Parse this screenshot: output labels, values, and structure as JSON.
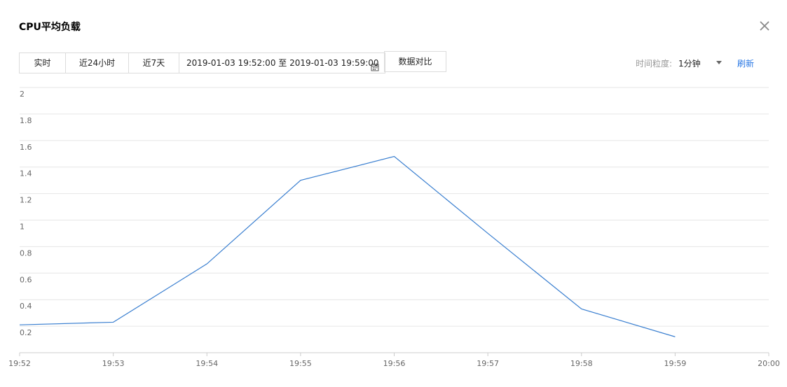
{
  "dialog": {
    "title": "CPU平均负载",
    "close_icon": "close-icon"
  },
  "toolbar": {
    "range_buttons": [
      "实时",
      "近24小时",
      "近7天"
    ],
    "date_range": "2019-01-03 19:52:00 至 2019-01-03 19:59:00",
    "calendar_icon": "calendar-icon",
    "compare_label": "数据对比",
    "granularity_label": "时间粒度:",
    "granularity_value": "1分钟",
    "refresh_label": "刷新"
  },
  "colors": {
    "line": "#3a7fd0",
    "grid": "#e6e6e6",
    "axis": "#cccccc",
    "link": "#2a78e4"
  },
  "chart_data": {
    "type": "line",
    "x": [
      "19:52",
      "19:53",
      "19:54",
      "19:55",
      "19:56",
      "19:57",
      "19:58",
      "19:59",
      "20:00"
    ],
    "series": [
      {
        "values": [
          0.21,
          0.23,
          0.67,
          1.3,
          1.48,
          0.9,
          0.33,
          0.12,
          null
        ]
      }
    ],
    "y_ticks": [
      "2",
      "1.8",
      "1.6",
      "1.4",
      "1.2",
      "1",
      "0.8",
      "0.6",
      "0.4",
      "0.2"
    ],
    "ylim": [
      0,
      2
    ],
    "grid": true,
    "legend": "none"
  }
}
